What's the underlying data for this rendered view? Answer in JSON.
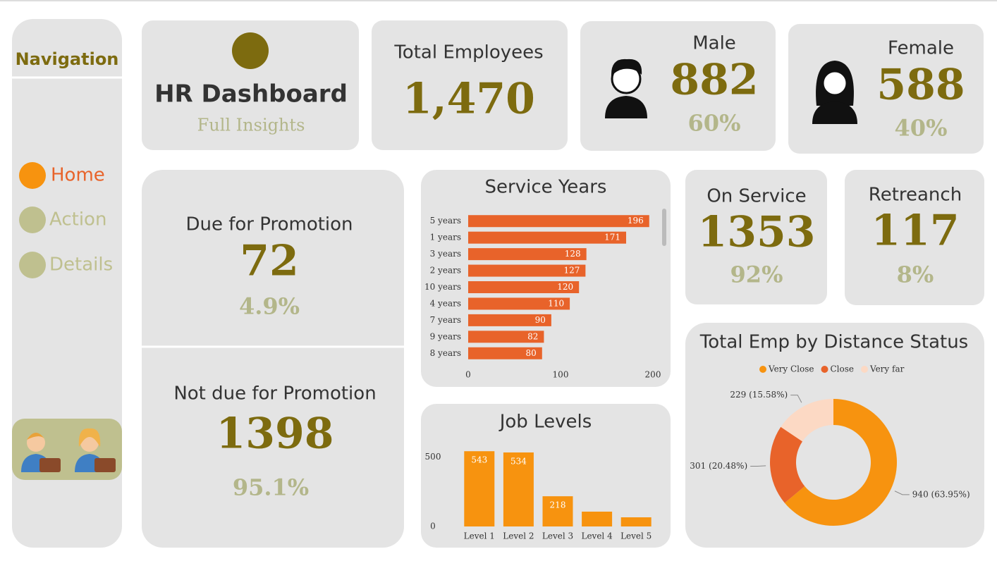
{
  "navigation": {
    "title": "Navigation",
    "items": [
      "Home",
      "Action",
      "Details"
    ]
  },
  "header": {
    "title": "HR Dashboard",
    "subtitle": "Full Insights"
  },
  "kpis": {
    "total": {
      "label": "Total Employees",
      "value": "1,470"
    },
    "male": {
      "label": "Male",
      "value": "882",
      "percent": "60%"
    },
    "female": {
      "label": "Female",
      "value": "588",
      "percent": "40%"
    },
    "due_promotion": {
      "label": "Due for Promotion",
      "value": "72",
      "percent": "4.9%"
    },
    "not_due_promotion": {
      "label": "Not due for Promotion",
      "value": "1398",
      "percent": "95.1%"
    },
    "on_service": {
      "label": "On Service",
      "value": "1353",
      "percent": "92%"
    },
    "retrench": {
      "label": "Retreanch",
      "value": "117",
      "percent": "8%"
    }
  },
  "chart_data": [
    {
      "type": "bar",
      "horizontal": true,
      "title": "Service Years",
      "categories": [
        "5 years",
        "1 years",
        "3 years",
        "2 years",
        "10 years",
        "4 years",
        "7 years",
        "9 years",
        "8 years"
      ],
      "values": [
        196,
        171,
        128,
        127,
        120,
        110,
        90,
        82,
        80
      ],
      "color": "#e8632a",
      "xlim": [
        0,
        200
      ],
      "xticks": [
        0,
        100,
        200
      ]
    },
    {
      "type": "bar",
      "title": "Job Levels",
      "categories": [
        "Level 1",
        "Level 2",
        "Level 3",
        "Level 4",
        "Level 5"
      ],
      "values": [
        543,
        534,
        218,
        107,
        66
      ],
      "color": "#f7930f",
      "ylim": [
        0,
        600
      ],
      "yticks": [
        0,
        500
      ]
    },
    {
      "type": "donut",
      "title": "Total Emp by Distance Status",
      "categories": [
        "Very Close",
        "Close",
        "Very far"
      ],
      "values": [
        940,
        301,
        229
      ],
      "value_labels": [
        "940 (63.95%)",
        "301 (20.48%)",
        "229 (15.58%)"
      ],
      "colors": [
        "#f7930f",
        "#e8632a",
        "#fcd9c4"
      ]
    }
  ]
}
